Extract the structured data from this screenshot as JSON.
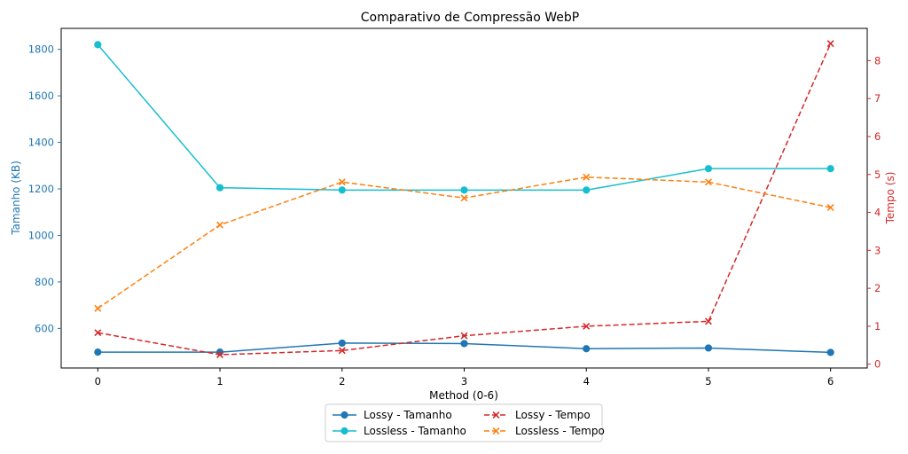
{
  "chart_data": {
    "type": "line",
    "title": "Comparativo de Compressão WebP",
    "xlabel": "Method (0-6)",
    "ylabel_left": "Tamanho (KB)",
    "ylabel_right": "Tempo (s)",
    "x": [
      0,
      1,
      2,
      3,
      4,
      5,
      6
    ],
    "xlim": [
      -0.3,
      6.3
    ],
    "ylim_left": [
      430,
      1890
    ],
    "ylim_right": [
      -0.1,
      8.85
    ],
    "yticks_left": [
      600,
      800,
      1000,
      1200,
      1400,
      1600,
      1800
    ],
    "yticks_right": [
      0,
      1,
      2,
      3,
      4,
      5,
      6,
      7,
      8
    ],
    "grid": false,
    "legend_position": "below-center",
    "series": [
      {
        "name": "Lossy - Tamanho",
        "axis": "left",
        "color": "#1f77b4",
        "style": "solid",
        "marker": "circle",
        "values": [
          498,
          498,
          537,
          535,
          513,
          516,
          497
        ]
      },
      {
        "name": "Lossless - Tamanho",
        "axis": "left",
        "color": "#17becf",
        "style": "solid",
        "marker": "circle",
        "values": [
          1820,
          1205,
          1195,
          1195,
          1195,
          1287,
          1287
        ]
      },
      {
        "name": "Lossy - Tempo",
        "axis": "right",
        "color": "#d62728",
        "style": "dashed",
        "marker": "x",
        "values": [
          0.83,
          0.25,
          0.36,
          0.75,
          1.0,
          1.13,
          8.45
        ]
      },
      {
        "name": "Lossless - Tempo",
        "axis": "right",
        "color": "#ff7f0e",
        "style": "dashed",
        "marker": "x",
        "values": [
          1.47,
          3.67,
          4.8,
          4.38,
          4.93,
          4.8,
          4.13
        ]
      }
    ],
    "colors": {
      "left_axis": "#1f77b4",
      "right_axis": "#d62728"
    }
  }
}
